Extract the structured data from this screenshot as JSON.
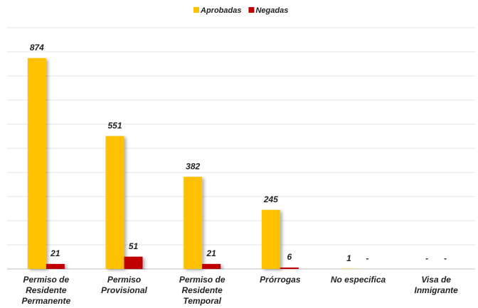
{
  "chart_data": {
    "type": "bar",
    "categories": [
      "Permiso de Residente Permanente",
      "Permiso Provisional",
      "Permiso de Residente Temporal",
      "Prórrogas",
      "No especifica",
      "Visa de Inmigrante"
    ],
    "series": [
      {
        "name": "Aprobadas",
        "color": "#ffc000",
        "values": [
          874,
          551,
          382,
          245,
          1,
          0
        ],
        "value_labels": [
          "874",
          "551",
          "382",
          "245",
          "1",
          "-"
        ]
      },
      {
        "name": "Negadas",
        "color": "#c00000",
        "values": [
          21,
          51,
          21,
          6,
          0,
          0
        ],
        "value_labels": [
          "21",
          "51",
          "21",
          "6",
          "-",
          "-"
        ]
      }
    ],
    "ylim": [
      0,
      1000
    ],
    "yticks": [
      0,
      100,
      200,
      300,
      400,
      500,
      600,
      700,
      800,
      900,
      1000
    ],
    "grid": true,
    "legend": "top"
  }
}
